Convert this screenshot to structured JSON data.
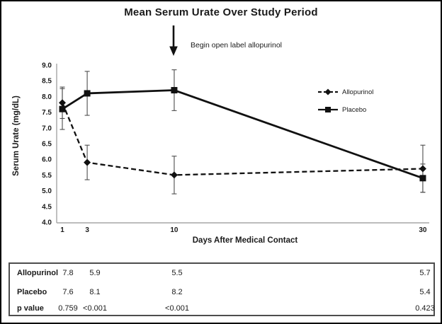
{
  "chart_data": {
    "type": "line",
    "title": "Mean Serum Urate Over Study Period",
    "xlabel": "Days After Medical Contact",
    "ylabel": "Serum Urate (mg/dL)",
    "x": [
      1,
      3,
      10,
      30
    ],
    "xticks": [
      1,
      3,
      10,
      30
    ],
    "yticks": [
      9.0,
      8.5,
      8.0,
      7.5,
      7.0,
      6.5,
      6.0,
      5.5,
      5.0,
      4.5,
      4.0
    ],
    "ylim": [
      4.0,
      9.0
    ],
    "xlim": [
      1,
      30
    ],
    "grid": false,
    "legend_position": "inside-top-right",
    "annotation": {
      "text": "Begin open label allopurinol",
      "arrow_at_day": 10
    },
    "series": [
      {
        "name": "Allopurinol",
        "style": "dashed",
        "marker": "diamond",
        "values": [
          7.8,
          5.9,
          5.5,
          5.7
        ],
        "errors": [
          0.5,
          0.55,
          0.6,
          0.75
        ]
      },
      {
        "name": "Placebo",
        "style": "solid",
        "marker": "square",
        "values": [
          7.6,
          8.1,
          8.2,
          5.4
        ],
        "errors": [
          0.65,
          0.7,
          0.65,
          0.45
        ]
      }
    ],
    "colors": {
      "line": "#111111",
      "axis": "#a6a6a6",
      "error_bar": "#4d4d4d"
    }
  },
  "table": {
    "rows": [
      {
        "label": "Allopurinol",
        "values": [
          "7.8",
          "5.9",
          "5.5",
          "5.7"
        ]
      },
      {
        "label": "Placebo",
        "values": [
          "7.6",
          "8.1",
          "8.2",
          "5.4"
        ]
      },
      {
        "label": "p value",
        "values": [
          "0.759",
          "<0.001",
          "<0.001",
          "0.423"
        ]
      }
    ]
  }
}
